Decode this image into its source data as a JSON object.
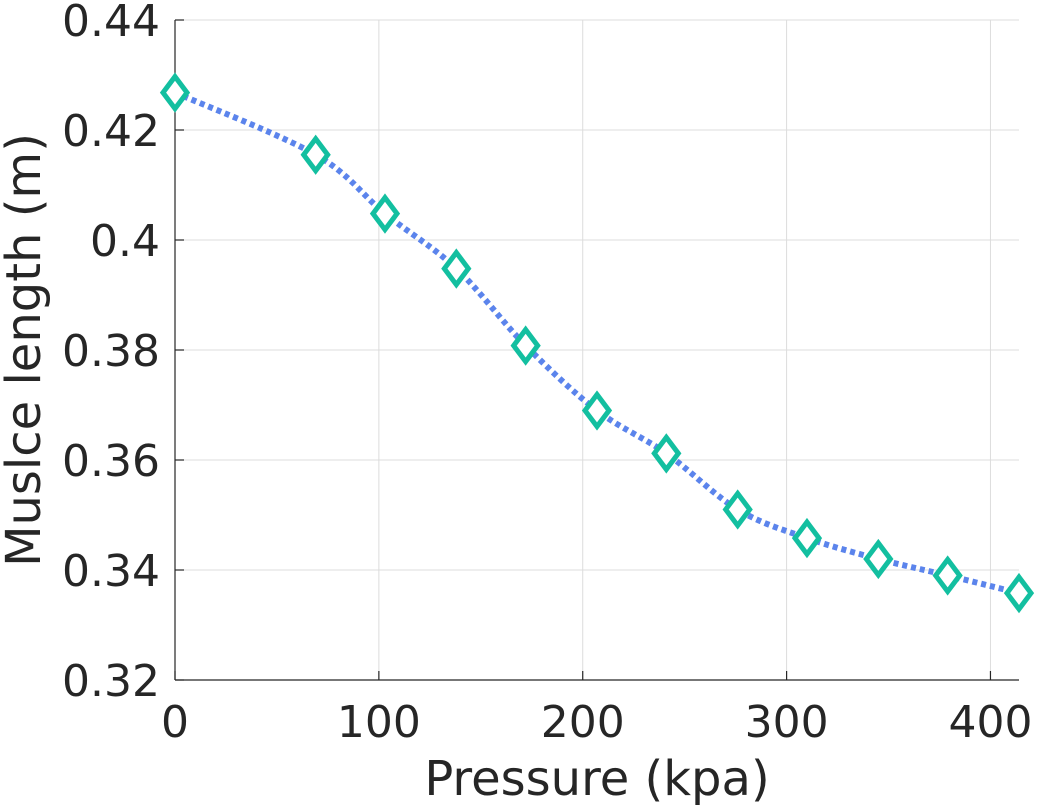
{
  "chart_data": {
    "type": "line",
    "xlabel": "Pressure (kpa)",
    "ylabel": "Muslce length (m)",
    "xlim": [
      0,
      414
    ],
    "ylim": [
      0.32,
      0.44
    ],
    "xticks": [
      0,
      100,
      200,
      300,
      400
    ],
    "xtick_labels": [
      "0",
      "100",
      "200",
      "300",
      "400"
    ],
    "yticks": [
      0.32,
      0.34,
      0.36,
      0.38,
      0.4,
      0.42,
      0.44
    ],
    "ytick_labels": [
      "0.32",
      "0.34",
      "0.36",
      "0.38",
      "0.4",
      "0.42",
      "0.44"
    ],
    "grid": true,
    "series": [
      {
        "x": [
          0,
          69,
          103,
          138,
          172,
          207,
          241,
          276,
          310,
          345,
          379,
          414
        ],
        "y": [
          0.4268,
          0.4155,
          0.4048,
          0.3948,
          0.3808,
          0.369,
          0.3612,
          0.351,
          0.3458,
          0.342,
          0.339,
          0.3358
        ],
        "line_style": "dotted",
        "marker": "diamond",
        "line_color": "#5b84ec",
        "marker_color": "#13bfa0"
      }
    ]
  }
}
